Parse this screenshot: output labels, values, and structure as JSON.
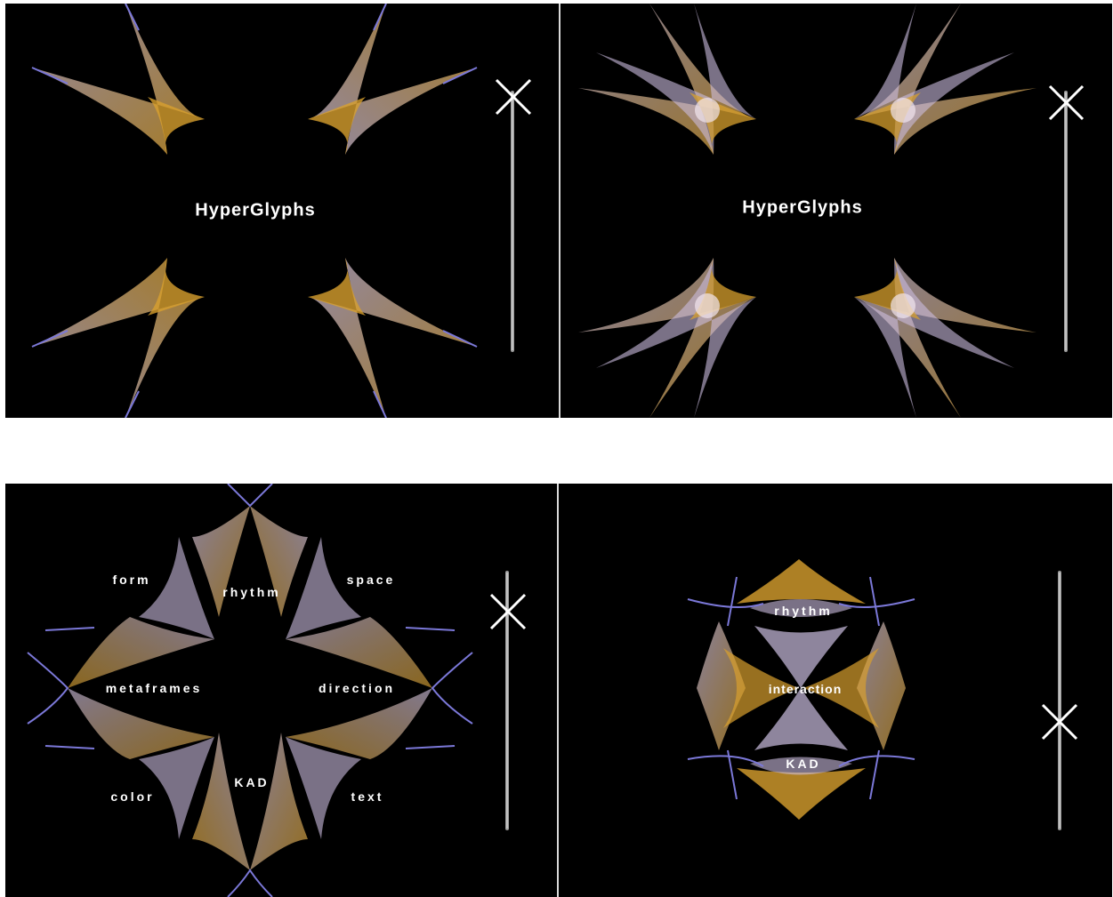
{
  "colors": {
    "background": "#000000",
    "gold": "#d8a02e",
    "lavender": "#cbbde0",
    "blue_edge": "#7b78d8",
    "text": "#ffffff"
  },
  "panel1": {
    "title": "HyperGlyphs"
  },
  "panel2": {
    "title": "HyperGlyphs"
  },
  "panel3": {
    "labels": {
      "form": "form",
      "rhythm": "rhythm",
      "space": "space",
      "metaframes": "metaframes",
      "direction": "direction",
      "color": "color",
      "kad": "KAD",
      "text": "text"
    }
  },
  "panel4": {
    "labels": {
      "rhythm": "rhythm",
      "interaction": "interaction",
      "kad": "KAD"
    }
  },
  "icons": {
    "close_marker": "x-icon",
    "slider": "vertical-slider-track"
  }
}
